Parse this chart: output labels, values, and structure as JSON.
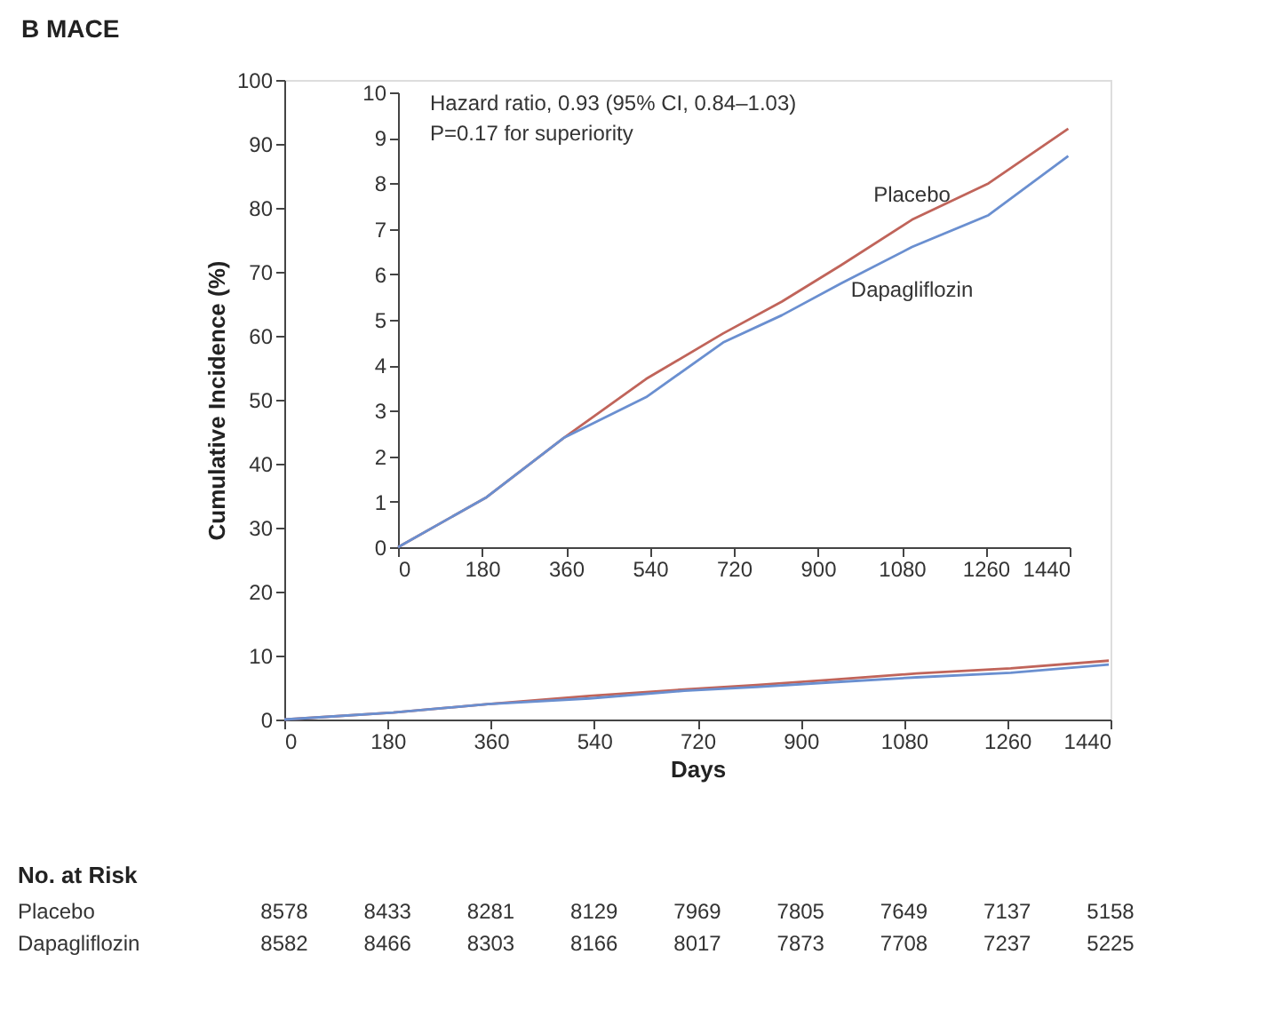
{
  "chart_data": [
    {
      "type": "line",
      "title": "B MACE",
      "xlabel": "Days",
      "ylabel": "Cumulative Incidence (%)",
      "x": [
        0,
        190,
        355,
        532,
        697,
        823,
        950,
        1102,
        1266,
        1437
      ],
      "series": [
        {
          "color": "#c0645a",
          "values": [
            0,
            1.1,
            2.4,
            3.7,
            4.7,
            5.4,
            6.2,
            7.2,
            8.0,
            9.2
          ]
        },
        {
          "color": "#6a8fd0",
          "values": [
            0,
            1.1,
            2.4,
            3.3,
            4.5,
            5.1,
            5.8,
            6.6,
            7.3,
            8.6
          ]
        }
      ],
      "xlim": [
        0,
        1440
      ],
      "xticks": [
        0,
        180,
        360,
        540,
        720,
        900,
        1080,
        1260,
        1440
      ],
      "ylim": [
        0,
        100
      ],
      "yticks": [
        0,
        10,
        20,
        30,
        40,
        50,
        60,
        70,
        80,
        90,
        100
      ],
      "grid": false,
      "annotations": [
        "No. at Risk",
        "Placebo",
        "Dapagliflozin",
        "8578",
        "8433",
        "8281",
        "8129",
        "7969",
        "7805",
        "7649",
        "7137",
        "5158",
        "8582",
        "8466",
        "8303",
        "8166",
        "8017",
        "7873",
        "7708",
        "7237",
        "5225"
      ]
    },
    {
      "type": "line",
      "x": [
        0,
        190,
        355,
        532,
        697,
        823,
        950,
        1102,
        1266,
        1437
      ],
      "series": [
        {
          "name": "Placebo",
          "color": "#c0645a",
          "values": [
            0,
            1.1,
            2.4,
            3.7,
            4.7,
            5.4,
            6.2,
            7.2,
            8.0,
            9.2
          ]
        },
        {
          "name": "Dapagliflozin",
          "color": "#6a8fd0",
          "values": [
            0,
            1.1,
            2.4,
            3.3,
            4.5,
            5.1,
            5.8,
            6.6,
            7.3,
            8.6
          ]
        }
      ],
      "xlim": [
        0,
        1440
      ],
      "xticks": [
        0,
        180,
        360,
        540,
        720,
        900,
        1080,
        1260,
        1440
      ],
      "ylim": [
        0,
        10
      ],
      "yticks": [
        0,
        1,
        2,
        3,
        4,
        5,
        6,
        7,
        8,
        9,
        10
      ],
      "grid": false,
      "annotations": [
        "Hazard ratio, 0.93 (95% CI, 0.84–1.03)",
        "P=0.17 for superiority"
      ]
    }
  ]
}
